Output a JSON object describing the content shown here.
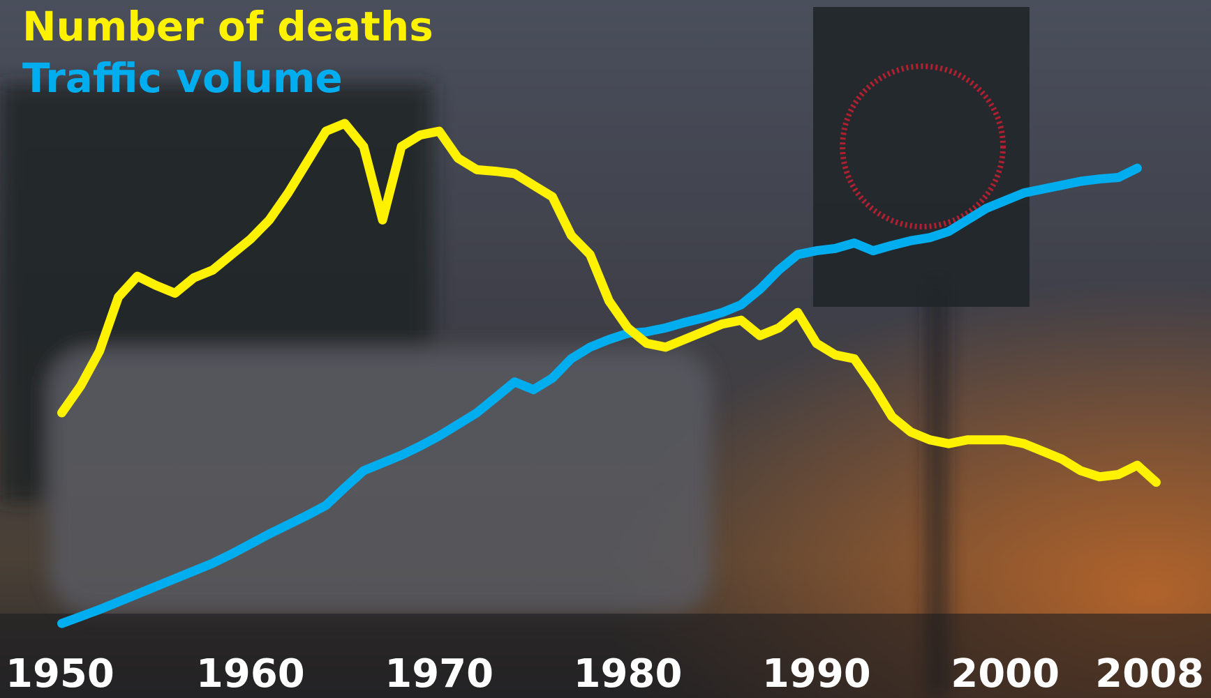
{
  "chart_data": {
    "type": "line",
    "x": [
      1950,
      1951,
      1952,
      1953,
      1954,
      1955,
      1956,
      1957,
      1958,
      1959,
      1960,
      1961,
      1962,
      1963,
      1964,
      1965,
      1966,
      1967,
      1968,
      1969,
      1970,
      1971,
      1972,
      1973,
      1974,
      1975,
      1976,
      1977,
      1978,
      1979,
      1980,
      1981,
      1982,
      1983,
      1984,
      1985,
      1986,
      1987,
      1988,
      1989,
      1990,
      1991,
      1992,
      1993,
      1994,
      1995,
      1996,
      1997,
      1998,
      1999,
      2000,
      2001,
      2002,
      2003,
      2004,
      2005,
      2006,
      2007,
      2008
    ],
    "xlim": [
      1950,
      2008
    ],
    "xticks": [
      1950,
      1960,
      1970,
      1980,
      1990,
      2000,
      2008
    ],
    "series": [
      {
        "name": "Number of deaths",
        "color": "#fff200",
        "values": [
          31.5,
          35,
          39.5,
          46.5,
          49.2,
          48,
          47,
          49,
          50,
          52,
          54,
          56.5,
          60,
          64,
          68,
          69,
          66,
          56.5,
          66,
          67.5,
          68,
          64.5,
          63,
          62.8,
          62.5,
          61,
          59.5,
          54.5,
          52,
          46,
          42.5,
          40.5,
          40,
          41,
          42,
          43,
          43.5,
          41.5,
          42.5,
          44.5,
          40.5,
          39,
          38.5,
          35,
          31,
          29,
          28,
          27.5,
          28,
          28,
          28,
          27.5,
          26.5,
          25.5,
          24,
          23.2,
          23.5,
          24.7,
          22.5
        ]
      },
      {
        "name": "Traffic volume",
        "color": "#00aeef",
        "values": [
          4.2,
          5.1,
          6,
          7,
          8,
          9,
          10,
          11,
          12,
          13.2,
          14.5,
          15.8,
          17,
          18.2,
          19.5,
          21.8,
          24,
          25,
          26,
          27.2,
          28.5,
          30,
          31.5,
          33.5,
          35.5,
          34.5,
          36,
          38.5,
          40,
          41,
          41.8,
          42,
          42.5,
          43.2,
          43.8,
          44.5,
          45.5,
          47.5,
          50,
          52,
          52.5,
          52.8,
          53.5,
          52.5,
          53.2,
          53.8,
          54.2,
          55,
          56.5,
          58,
          59,
          60,
          60.5,
          61,
          61.5,
          61.8,
          62,
          63.2,
          null
        ]
      }
    ]
  }
}
